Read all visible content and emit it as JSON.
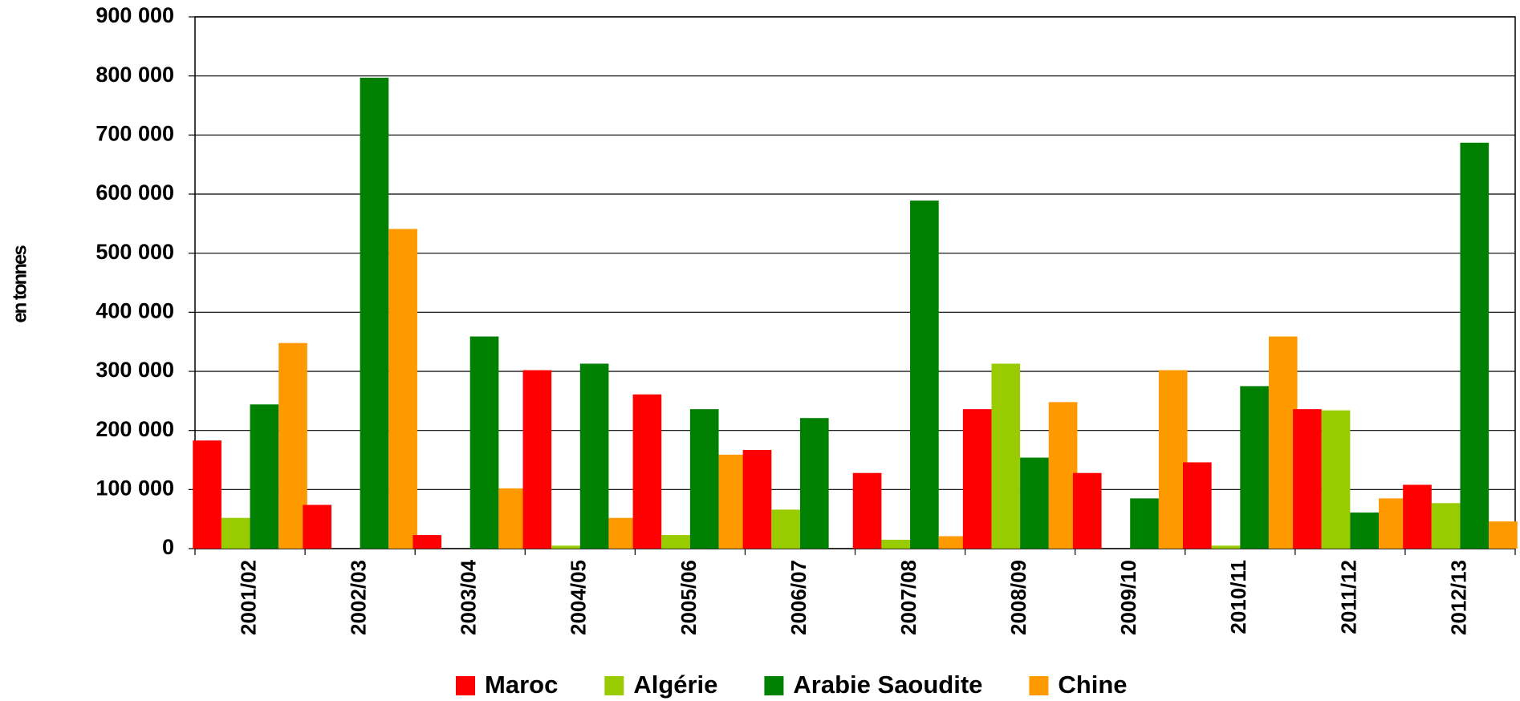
{
  "chart_data": {
    "type": "bar",
    "y_label": "en tonnes",
    "categories": [
      "2001/02",
      "2002/03",
      "2003/04",
      "2004/05",
      "2005/06",
      "2006/07",
      "2007/08",
      "2008/09",
      "2009/10",
      "2010/11",
      "2011/12",
      "2012/13"
    ],
    "series": [
      {
        "name": "Maroc",
        "color": "#ff0000",
        "values": [
          183000,
          74000,
          23000,
          302000,
          261000,
          167000,
          128000,
          236000,
          128000,
          146000,
          236000,
          108000
        ]
      },
      {
        "name": "Algérie",
        "color": "#99cc00",
        "values": [
          52000,
          0,
          0,
          5000,
          23000,
          66000,
          15000,
          313000,
          0,
          5000,
          234000,
          77000
        ]
      },
      {
        "name": "Arabie Saoudite",
        "color": "#008000",
        "values": [
          244000,
          797000,
          359000,
          313000,
          236000,
          221000,
          589000,
          154000,
          85000,
          275000,
          61000,
          687000
        ]
      },
      {
        "name": "Chine",
        "color": "#ff9900",
        "values": [
          348000,
          541000,
          102000,
          52000,
          159000,
          0,
          21000,
          248000,
          302000,
          359000,
          85000,
          46000
        ]
      }
    ],
    "ylim": [
      0,
      900000
    ],
    "yticks": [
      0,
      {
        "value": 100000,
        "label": "100 000"
      },
      {
        "value": 200000,
        "label": "200 000"
      },
      {
        "value": 300000,
        "label": "300 000"
      },
      {
        "value": 400000,
        "label": "400 000"
      },
      {
        "value": 500000,
        "label": "500 000"
      },
      {
        "value": 600000,
        "label": "600 000"
      },
      {
        "value": 700000,
        "label": "700 000"
      },
      {
        "value": 800000,
        "label": "800 000"
      },
      {
        "value": 900000,
        "label": "900 000"
      }
    ],
    "grid": true,
    "legend": "bottom"
  }
}
